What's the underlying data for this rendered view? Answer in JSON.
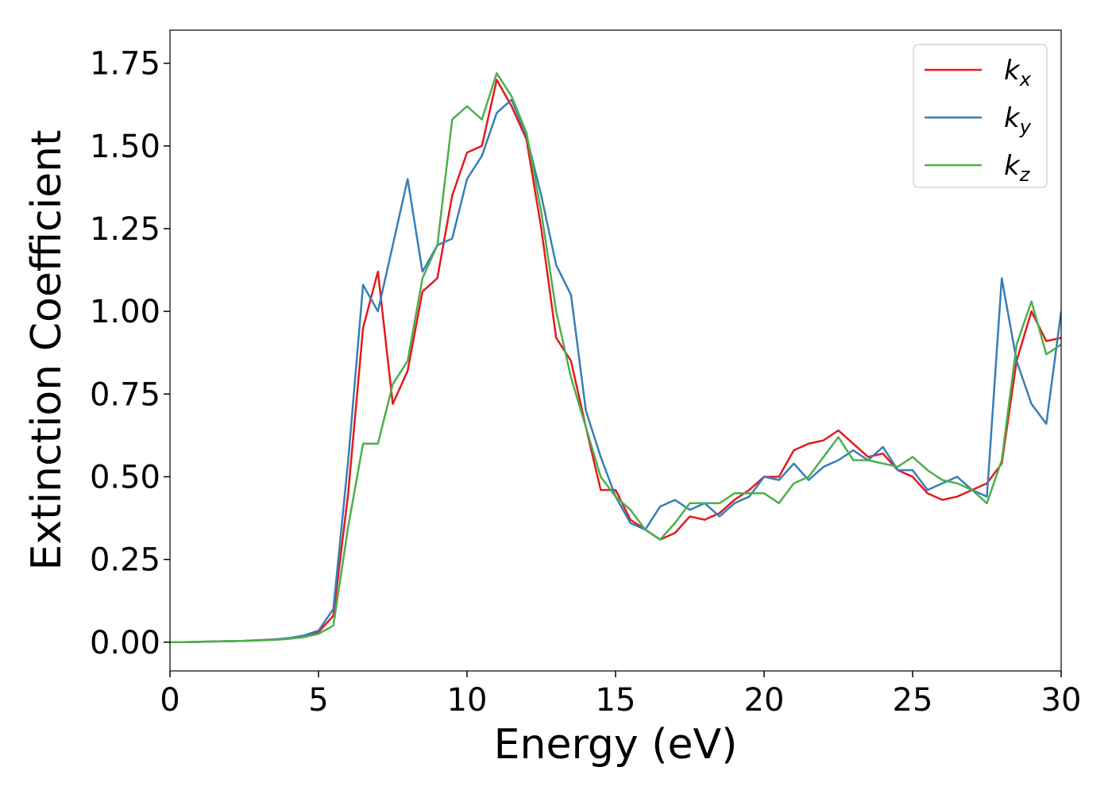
{
  "chart_data": {
    "type": "line",
    "xlabel": "Energy (eV)",
    "ylabel": "Extinction Coefficient",
    "xlim": [
      0,
      30
    ],
    "ylim": [
      -0.087,
      1.85
    ],
    "xticks": [
      0,
      5,
      10,
      15,
      20,
      25,
      30
    ],
    "yticks": [
      {
        "value": 0,
        "label": "0.00"
      },
      {
        "value": 0.25,
        "label": "0.25"
      },
      {
        "value": 0.5,
        "label": "0.50"
      },
      {
        "value": 0.75,
        "label": "0.75"
      },
      {
        "value": 1,
        "label": "1.00"
      },
      {
        "value": 1.25,
        "label": "1.25"
      },
      {
        "value": 1.5,
        "label": "1.50"
      },
      {
        "value": 1.75,
        "label": "1.75"
      }
    ],
    "grid": false,
    "legend": "upper right",
    "x": [
      0,
      0.5,
      1,
      1.5,
      2,
      2.5,
      3,
      3.5,
      4,
      4.5,
      5,
      5.5,
      6,
      6.5,
      7,
      7.5,
      8,
      8.5,
      9,
      9.5,
      10,
      10.5,
      11,
      11.5,
      12,
      12.5,
      13,
      13.5,
      14,
      14.5,
      15,
      15.5,
      16,
      16.5,
      17,
      17.5,
      18,
      18.5,
      19,
      19.5,
      20,
      20.5,
      21,
      21.5,
      22,
      22.5,
      23,
      23.5,
      24,
      24.5,
      25,
      25.5,
      26,
      26.5,
      27,
      27.5,
      28,
      28.5,
      29,
      29.5,
      30
    ],
    "series": [
      {
        "name": "kx",
        "color": "#e41a1c",
        "values": [
          0,
          0,
          0.001,
          0.002,
          0.003,
          0.004,
          0.006,
          0.008,
          0.012,
          0.018,
          0.03,
          0.08,
          0.45,
          0.95,
          1.12,
          0.72,
          0.82,
          1.06,
          1.1,
          1.35,
          1.48,
          1.5,
          1.7,
          1.62,
          1.52,
          1.25,
          0.92,
          0.85,
          0.65,
          0.46,
          0.46,
          0.37,
          0.34,
          0.31,
          0.33,
          0.38,
          0.37,
          0.39,
          0.43,
          0.46,
          0.5,
          0.5,
          0.58,
          0.6,
          0.61,
          0.64,
          0.6,
          0.56,
          0.57,
          0.52,
          0.5,
          0.45,
          0.43,
          0.44,
          0.46,
          0.48,
          0.54,
          0.85,
          1.0,
          0.91,
          0.92
        ]
      },
      {
        "name": "ky",
        "color": "#377eb8",
        "values": [
          0,
          0,
          0.001,
          0.002,
          0.003,
          0.004,
          0.006,
          0.008,
          0.012,
          0.02,
          0.035,
          0.1,
          0.55,
          1.08,
          1.0,
          1.2,
          1.4,
          1.12,
          1.2,
          1.22,
          1.4,
          1.47,
          1.6,
          1.64,
          1.53,
          1.35,
          1.14,
          1.05,
          0.7,
          0.56,
          0.44,
          0.36,
          0.34,
          0.41,
          0.43,
          0.4,
          0.42,
          0.38,
          0.42,
          0.44,
          0.5,
          0.49,
          0.54,
          0.49,
          0.53,
          0.55,
          0.58,
          0.55,
          0.59,
          0.52,
          0.52,
          0.46,
          0.48,
          0.5,
          0.46,
          0.44,
          1.1,
          0.85,
          0.72,
          0.66,
          1.0
        ]
      },
      {
        "name": "kz",
        "color": "#4daf4a",
        "values": [
          0,
          0,
          0.001,
          0.002,
          0.003,
          0.004,
          0.005,
          0.007,
          0.01,
          0.015,
          0.025,
          0.05,
          0.35,
          0.6,
          0.6,
          0.78,
          0.85,
          1.1,
          1.2,
          1.58,
          1.62,
          1.58,
          1.72,
          1.65,
          1.54,
          1.3,
          1.0,
          0.8,
          0.65,
          0.5,
          0.44,
          0.4,
          0.34,
          0.31,
          0.36,
          0.42,
          0.42,
          0.42,
          0.45,
          0.45,
          0.45,
          0.42,
          0.48,
          0.5,
          0.56,
          0.62,
          0.55,
          0.55,
          0.54,
          0.53,
          0.56,
          0.52,
          0.49,
          0.48,
          0.46,
          0.42,
          0.55,
          0.9,
          1.03,
          0.87,
          0.9
        ]
      }
    ]
  }
}
